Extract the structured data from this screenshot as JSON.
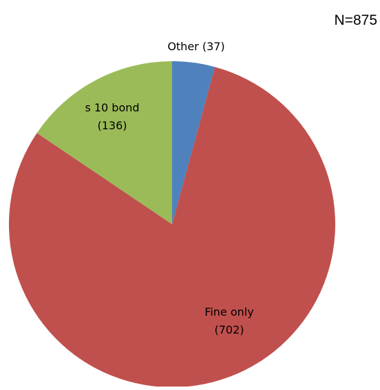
{
  "chart_data": {
    "type": "pie",
    "title": "",
    "annotation": "N=875",
    "slices": [
      {
        "label_lines": [
          "Other (37)"
        ],
        "value": 37,
        "color": "#4F81BD"
      },
      {
        "label_lines": [
          "Fine only",
          "(702)"
        ],
        "value": 702,
        "color": "#C0504D"
      },
      {
        "label_lines": [
          "s 10 bond",
          "(136)"
        ],
        "value": 136,
        "color": "#9BBB59"
      }
    ],
    "start_angle": "12 o'clock",
    "direction": "clockwise",
    "legend": "none"
  }
}
